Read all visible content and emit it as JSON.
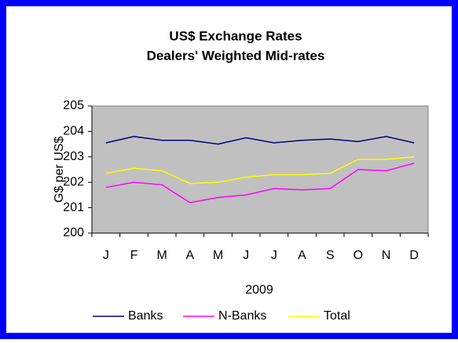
{
  "chart_data": {
    "type": "line",
    "title": "US$ Exchange Rates",
    "subtitle": "Dealers' Weighted Mid-rates",
    "x_label": "2009",
    "y_label": "G$ per US$",
    "categories": [
      "J",
      "F",
      "M",
      "A",
      "M",
      "J",
      "J",
      "A",
      "S",
      "O",
      "N",
      "D"
    ],
    "series": [
      {
        "name": "Banks",
        "color": "#000080",
        "values": [
          203.55,
          203.8,
          203.65,
          203.65,
          203.5,
          203.75,
          203.55,
          203.65,
          203.7,
          203.6,
          203.8,
          203.55
        ]
      },
      {
        "name": "N-Banks",
        "color": "#ff00ff",
        "values": [
          201.8,
          202.0,
          201.9,
          201.2,
          201.4,
          201.5,
          201.75,
          201.7,
          201.75,
          202.5,
          202.45,
          202.75
        ]
      },
      {
        "name": "Total",
        "color": "#ffff00",
        "values": [
          202.35,
          202.55,
          202.45,
          201.95,
          202.0,
          202.2,
          202.3,
          202.3,
          202.35,
          202.9,
          202.9,
          203.0
        ]
      }
    ],
    "ylim": [
      200,
      205
    ],
    "yticks": [
      200,
      201,
      202,
      203,
      204,
      205
    ],
    "legend": "bottom"
  }
}
